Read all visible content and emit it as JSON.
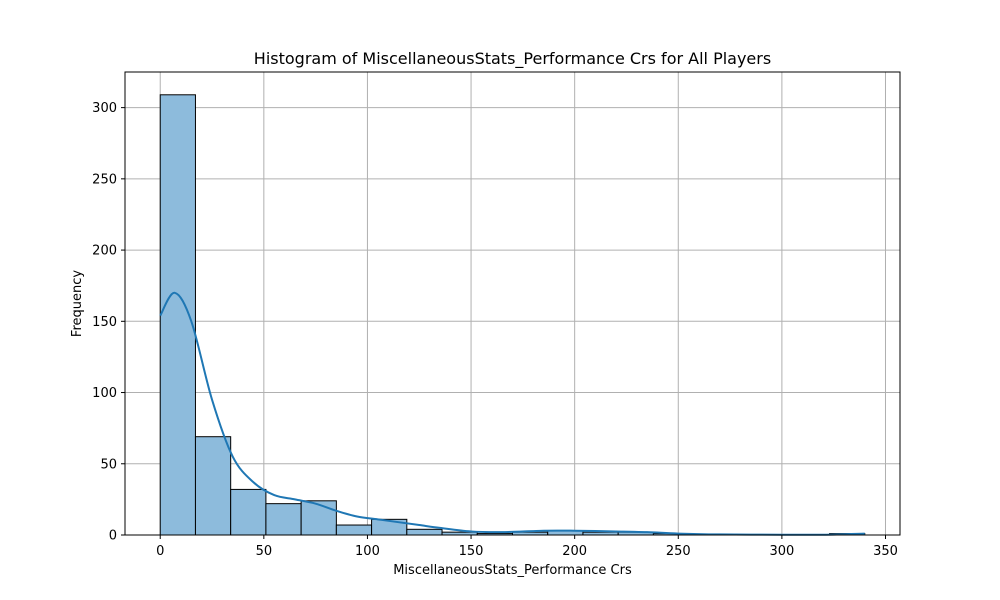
{
  "chart_data": {
    "type": "bar",
    "title": "Histogram of MiscellaneousStats_Performance Crs for All Players",
    "xlabel": "MiscellaneousStats_Performance Crs",
    "ylabel": "Frequency",
    "xlim": [
      -17,
      357
    ],
    "ylim": [
      0,
      325
    ],
    "xticks": [
      0,
      50,
      100,
      150,
      200,
      250,
      300,
      350
    ],
    "yticks": [
      0,
      50,
      100,
      150,
      200,
      250,
      300
    ],
    "grid": true,
    "bins": [
      {
        "x0": 0,
        "x1": 17,
        "count": 309
      },
      {
        "x0": 17,
        "x1": 34,
        "count": 69
      },
      {
        "x0": 34,
        "x1": 51,
        "count": 32
      },
      {
        "x0": 51,
        "x1": 68,
        "count": 22
      },
      {
        "x0": 68,
        "x1": 85,
        "count": 24
      },
      {
        "x0": 85,
        "x1": 102,
        "count": 7
      },
      {
        "x0": 102,
        "x1": 119,
        "count": 11
      },
      {
        "x0": 119,
        "x1": 136,
        "count": 4
      },
      {
        "x0": 136,
        "x1": 153,
        "count": 2
      },
      {
        "x0": 153,
        "x1": 170,
        "count": 1
      },
      {
        "x0": 170,
        "x1": 187,
        "count": 2
      },
      {
        "x0": 187,
        "x1": 204,
        "count": 3
      },
      {
        "x0": 204,
        "x1": 221,
        "count": 2
      },
      {
        "x0": 221,
        "x1": 238,
        "count": 2
      },
      {
        "x0": 238,
        "x1": 255,
        "count": 1
      },
      {
        "x0": 255,
        "x1": 272,
        "count": 0
      },
      {
        "x0": 272,
        "x1": 289,
        "count": 0
      },
      {
        "x0": 289,
        "x1": 306,
        "count": 0
      },
      {
        "x0": 306,
        "x1": 323,
        "count": 0
      },
      {
        "x0": 323,
        "x1": 340,
        "count": 1
      }
    ],
    "kde": {
      "x": [
        0,
        7,
        15,
        25,
        35,
        45,
        55,
        65,
        75,
        85,
        95,
        105,
        115,
        125,
        135,
        150,
        165,
        185,
        200,
        220,
        235,
        250,
        270,
        300,
        320,
        340
      ],
      "y": [
        154,
        170,
        150,
        95,
        55,
        37,
        28,
        25,
        22,
        17,
        13,
        11,
        9,
        7,
        5,
        2.5,
        2,
        3,
        3,
        2.5,
        2,
        1,
        0.4,
        0.2,
        0.2,
        1
      ]
    },
    "colors": {
      "bar_fill": "#8dbbdc",
      "bar_edge": "#000000",
      "kde_line": "#1f77b4",
      "grid": "#b0b0b0"
    }
  }
}
